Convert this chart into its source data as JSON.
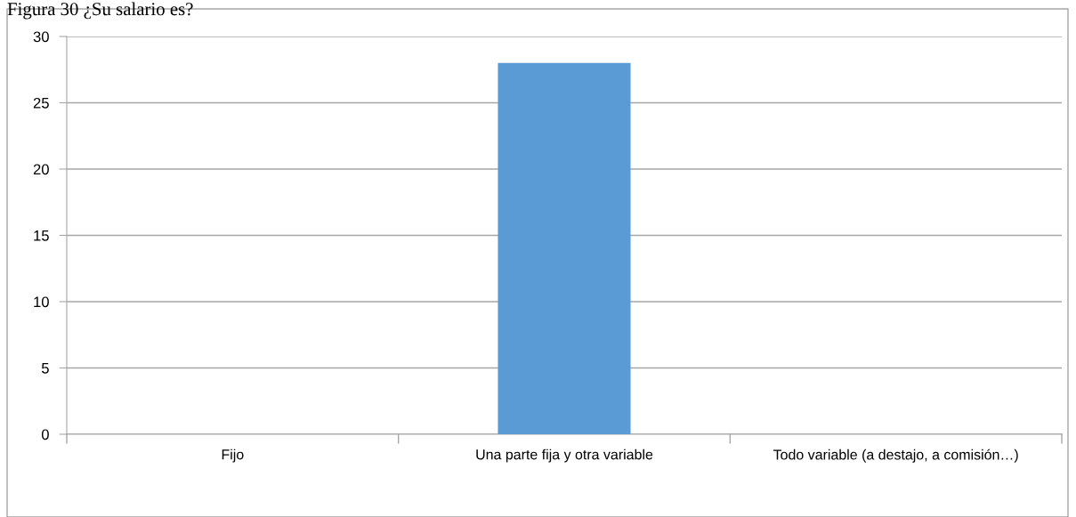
{
  "chart_data": {
    "type": "bar",
    "title": "Figura 30 ¿Su salario es?",
    "categories": [
      "Fijo",
      "Una parte fija y otra variable",
      "Todo variable (a destajo, a comisión…)"
    ],
    "values": [
      0,
      28,
      0
    ],
    "color": "#5b9bd5",
    "ylim": [
      0,
      30
    ],
    "yticks": [
      0,
      5,
      10,
      15,
      20,
      25,
      30
    ],
    "grid": "y"
  }
}
